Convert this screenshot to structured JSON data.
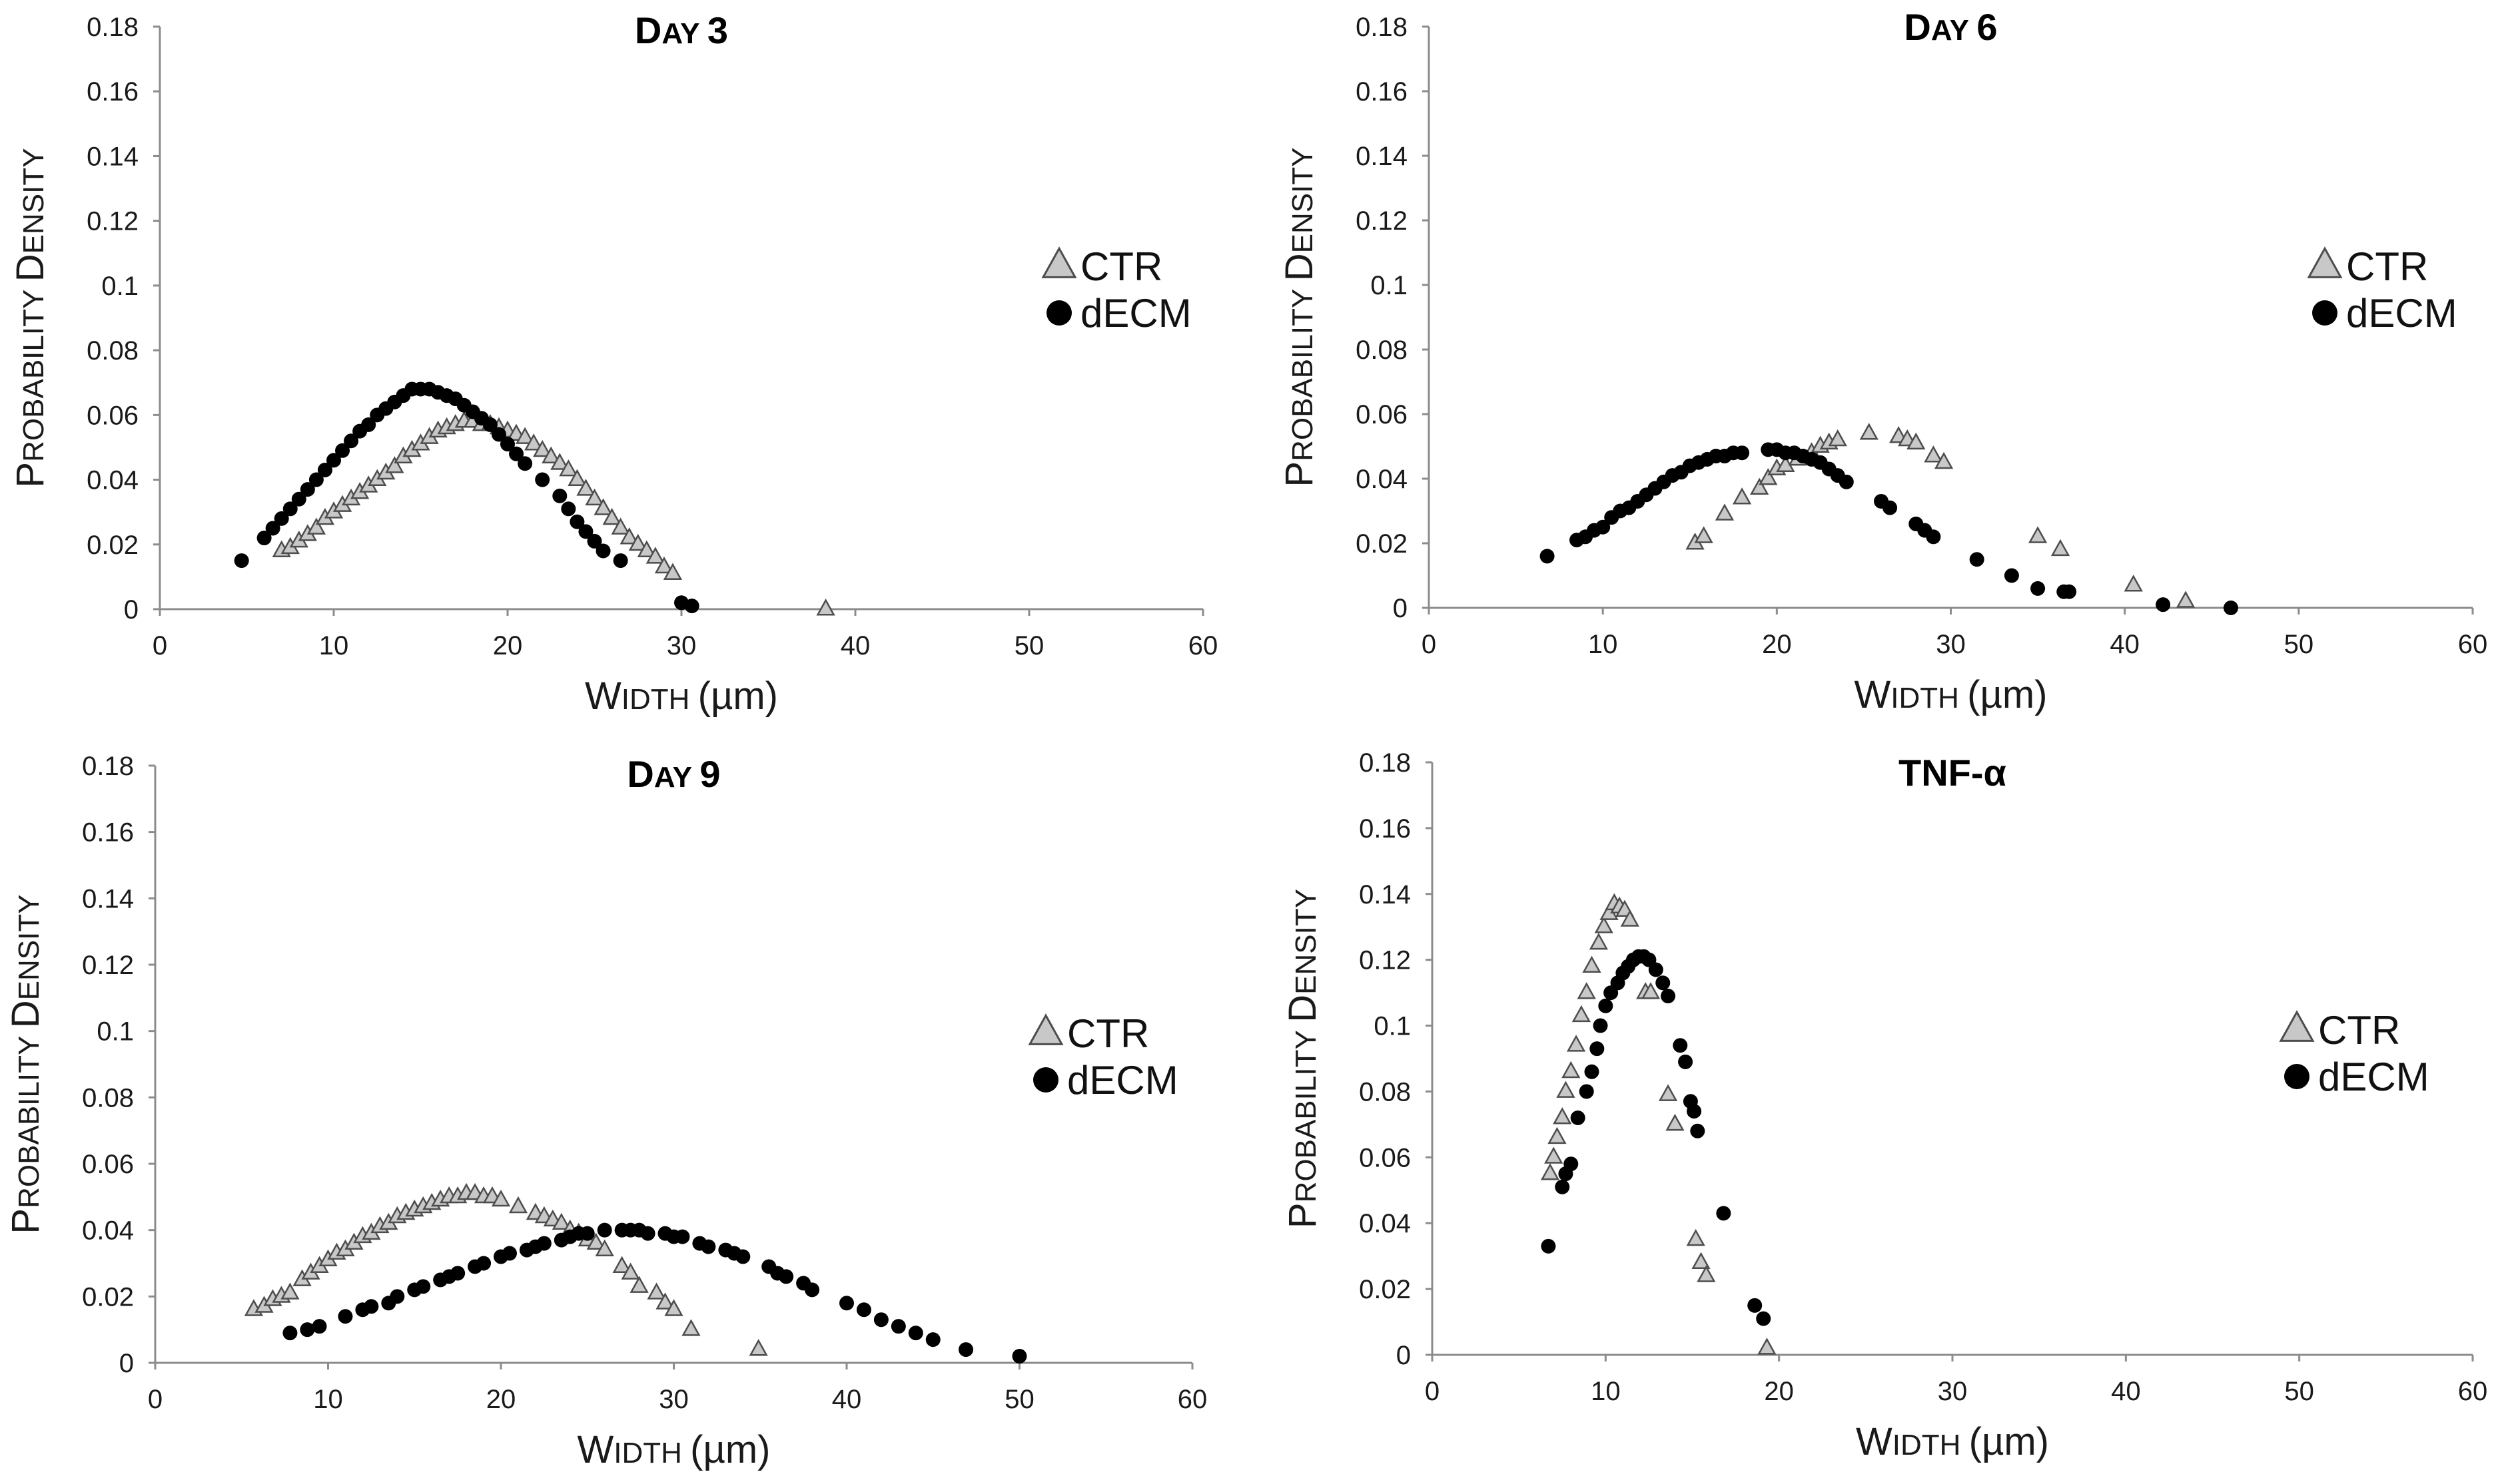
{
  "chart_data": [
    {
      "type": "scatter",
      "title": "Day 3",
      "xlabel": "Width (µm)",
      "ylabel": "Probability density",
      "xlim": [
        0,
        60
      ],
      "ylim": [
        0,
        0.18
      ],
      "xticks": [
        "0",
        "10",
        "20",
        "30",
        "40",
        "50",
        "60"
      ],
      "yticks": [
        "0",
        "0.02",
        "0.04",
        "0.06",
        "0.08",
        "0.1",
        "0.12",
        "0.14",
        "0.16",
        "0.18"
      ],
      "legend": [
        "CTR",
        "dECM"
      ],
      "series": [
        {
          "name": "CTR",
          "marker": "triangle",
          "color": "#c8c8c8",
          "x": [
            7.0,
            7.5,
            8.0,
            8.5,
            9.0,
            9.5,
            10.0,
            10.5,
            11.0,
            11.5,
            12.0,
            12.5,
            13.0,
            13.5,
            14.0,
            14.5,
            15.0,
            15.5,
            16.0,
            16.5,
            17.0,
            17.5,
            18.0,
            18.5,
            19.0,
            19.5,
            20.0,
            20.5,
            21.0,
            21.5,
            22.0,
            22.5,
            23.0,
            23.5,
            24.0,
            24.5,
            25.0,
            25.5,
            26.0,
            26.5,
            27.0,
            27.5,
            28.0,
            28.5,
            29.0,
            29.5,
            38.3
          ],
          "y": [
            0.018,
            0.019,
            0.021,
            0.023,
            0.025,
            0.028,
            0.03,
            0.032,
            0.034,
            0.036,
            0.038,
            0.04,
            0.042,
            0.044,
            0.047,
            0.049,
            0.051,
            0.053,
            0.055,
            0.056,
            0.057,
            0.058,
            0.058,
            0.057,
            0.057,
            0.056,
            0.055,
            0.054,
            0.053,
            0.051,
            0.049,
            0.047,
            0.045,
            0.043,
            0.04,
            0.037,
            0.034,
            0.031,
            0.028,
            0.025,
            0.022,
            0.02,
            0.018,
            0.016,
            0.013,
            0.011,
            0.0
          ]
        },
        {
          "name": "dECM",
          "marker": "circle",
          "color": "#000000",
          "x": [
            4.7,
            6.0,
            6.5,
            7.0,
            7.5,
            8.0,
            8.5,
            9.0,
            9.5,
            10.0,
            10.5,
            11.0,
            11.5,
            12.0,
            12.5,
            13.0,
            13.5,
            14.0,
            14.5,
            15.0,
            15.5,
            16.0,
            16.5,
            17.0,
            17.5,
            18.0,
            18.5,
            19.0,
            19.5,
            20.0,
            20.5,
            21.0,
            22.0,
            23.0,
            23.5,
            24.0,
            24.5,
            25.0,
            25.5,
            26.5,
            30.0,
            30.6
          ],
          "y": [
            0.015,
            0.022,
            0.025,
            0.028,
            0.031,
            0.034,
            0.037,
            0.04,
            0.043,
            0.046,
            0.049,
            0.052,
            0.055,
            0.057,
            0.06,
            0.062,
            0.064,
            0.066,
            0.068,
            0.068,
            0.068,
            0.067,
            0.066,
            0.065,
            0.063,
            0.061,
            0.059,
            0.057,
            0.054,
            0.051,
            0.048,
            0.045,
            0.04,
            0.035,
            0.031,
            0.027,
            0.024,
            0.021,
            0.018,
            0.015,
            0.002,
            0.001
          ]
        }
      ]
    },
    {
      "type": "scatter",
      "title": "Day 6",
      "xlabel": "Width (µm)",
      "ylabel": "Probability density",
      "xlim": [
        0,
        60
      ],
      "ylim": [
        0,
        0.18
      ],
      "xticks": [
        "0",
        "10",
        "20",
        "30",
        "40",
        "50",
        "60"
      ],
      "yticks": [
        "0",
        "0.02",
        "0.04",
        "0.06",
        "0.08",
        "0.1",
        "0.12",
        "0.14",
        "0.16",
        "0.18"
      ],
      "legend": [
        "CTR",
        "dECM"
      ],
      "series": [
        {
          "name": "CTR",
          "marker": "triangle",
          "color": "#c8c8c8",
          "x": [
            15.3,
            15.8,
            17.0,
            18.0,
            19.0,
            19.5,
            20.0,
            20.5,
            21.2,
            22.0,
            22.5,
            23.0,
            23.5,
            25.3,
            27.0,
            27.5,
            28.0,
            29.0,
            29.6,
            35.0,
            36.3,
            40.5,
            43.5
          ],
          "y": [
            0.02,
            0.022,
            0.029,
            0.034,
            0.037,
            0.04,
            0.043,
            0.044,
            0.046,
            0.048,
            0.05,
            0.051,
            0.052,
            0.054,
            0.053,
            0.052,
            0.051,
            0.047,
            0.045,
            0.022,
            0.018,
            0.007,
            0.002
          ]
        },
        {
          "name": "dECM",
          "marker": "circle",
          "color": "#000000",
          "x": [
            6.8,
            8.5,
            9.0,
            9.5,
            10.0,
            10.5,
            11.0,
            11.5,
            12.0,
            12.5,
            13.0,
            13.5,
            14.0,
            14.5,
            15.0,
            15.5,
            16.0,
            16.5,
            17.0,
            17.5,
            18.0,
            19.5,
            20.0,
            20.5,
            21.0,
            21.5,
            22.0,
            22.5,
            23.0,
            23.5,
            24.0,
            26.0,
            26.5,
            28.0,
            28.5,
            29.0,
            31.5,
            33.5,
            35.0,
            36.5,
            36.8,
            42.2,
            46.1
          ],
          "y": [
            0.016,
            0.021,
            0.022,
            0.024,
            0.025,
            0.028,
            0.03,
            0.031,
            0.033,
            0.035,
            0.037,
            0.039,
            0.041,
            0.042,
            0.044,
            0.045,
            0.046,
            0.047,
            0.047,
            0.048,
            0.048,
            0.049,
            0.049,
            0.048,
            0.048,
            0.047,
            0.046,
            0.045,
            0.043,
            0.041,
            0.039,
            0.033,
            0.031,
            0.026,
            0.024,
            0.022,
            0.015,
            0.01,
            0.006,
            0.005,
            0.005,
            0.001,
            0.0
          ]
        }
      ]
    },
    {
      "type": "scatter",
      "title": "Day 9",
      "xlabel": "Width (µm)",
      "ylabel": "Probability density",
      "xlim": [
        0,
        60
      ],
      "ylim": [
        0,
        0.18
      ],
      "xticks": [
        "0",
        "10",
        "20",
        "30",
        "40",
        "50",
        "60"
      ],
      "yticks": [
        "0",
        "0.02",
        "0.04",
        "0.06",
        "0.08",
        "0.1",
        "0.12",
        "0.14",
        "0.16",
        "0.18"
      ],
      "legend": [
        "CTR",
        "dECM"
      ],
      "series": [
        {
          "name": "CTR",
          "marker": "triangle",
          "color": "#c8c8c8",
          "x": [
            5.7,
            6.3,
            6.8,
            7.3,
            7.8,
            8.5,
            9.0,
            9.5,
            10.0,
            10.5,
            11.0,
            11.5,
            12.0,
            12.5,
            13.0,
            13.5,
            14.0,
            14.5,
            15.0,
            15.5,
            16.0,
            16.5,
            17.0,
            17.5,
            18.0,
            18.5,
            19.0,
            19.5,
            20.0,
            21.0,
            22.0,
            22.5,
            23.0,
            23.5,
            24.0,
            24.5,
            25.0,
            25.5,
            26.0,
            27.0,
            27.5,
            28.0,
            29.0,
            29.5,
            30.0,
            31.0,
            34.9
          ],
          "y": [
            0.016,
            0.017,
            0.019,
            0.02,
            0.021,
            0.025,
            0.027,
            0.029,
            0.031,
            0.033,
            0.034,
            0.036,
            0.038,
            0.039,
            0.041,
            0.042,
            0.044,
            0.045,
            0.046,
            0.047,
            0.048,
            0.049,
            0.05,
            0.05,
            0.051,
            0.051,
            0.05,
            0.05,
            0.049,
            0.047,
            0.045,
            0.044,
            0.043,
            0.042,
            0.04,
            0.039,
            0.037,
            0.036,
            0.034,
            0.029,
            0.027,
            0.023,
            0.021,
            0.018,
            0.016,
            0.01,
            0.004
          ]
        },
        {
          "name": "dECM",
          "marker": "circle",
          "color": "#000000",
          "x": [
            7.8,
            8.8,
            9.5,
            11.0,
            12.0,
            12.5,
            13.5,
            14.0,
            15.0,
            15.5,
            16.5,
            17.0,
            17.5,
            18.5,
            19.0,
            20.0,
            20.5,
            21.5,
            22.0,
            22.5,
            23.5,
            24.0,
            24.5,
            25.0,
            26.0,
            27.0,
            27.5,
            28.0,
            28.5,
            29.5,
            30.0,
            30.5,
            31.5,
            32.0,
            33.0,
            33.5,
            34.0,
            35.5,
            36.0,
            36.5,
            37.5,
            38.0,
            40.0,
            41.0,
            42.0,
            43.0,
            44.0,
            45.0,
            46.9,
            50.0
          ],
          "y": [
            0.009,
            0.01,
            0.011,
            0.014,
            0.016,
            0.017,
            0.018,
            0.02,
            0.022,
            0.023,
            0.025,
            0.026,
            0.027,
            0.029,
            0.03,
            0.032,
            0.033,
            0.034,
            0.035,
            0.036,
            0.037,
            0.038,
            0.039,
            0.039,
            0.04,
            0.04,
            0.04,
            0.04,
            0.039,
            0.039,
            0.038,
            0.038,
            0.036,
            0.035,
            0.034,
            0.033,
            0.032,
            0.029,
            0.027,
            0.026,
            0.024,
            0.022,
            0.018,
            0.016,
            0.013,
            0.011,
            0.009,
            0.007,
            0.004,
            0.002
          ]
        }
      ]
    },
    {
      "type": "scatter",
      "title": "TNF-α",
      "xlabel": "Width (µm)",
      "ylabel": "Probability density",
      "xlim": [
        0,
        60
      ],
      "ylim": [
        0,
        0.18
      ],
      "xticks": [
        "0",
        "10",
        "20",
        "30",
        "40",
        "50",
        "60"
      ],
      "yticks": [
        "0",
        "0.02",
        "0.04",
        "0.06",
        "0.08",
        "0.1",
        "0.12",
        "0.14",
        "0.16",
        "0.18"
      ],
      "legend": [
        "CTR",
        "dECM"
      ],
      "series": [
        {
          "name": "CTR",
          "marker": "triangle",
          "color": "#c8c8c8",
          "x": [
            6.8,
            7.0,
            7.2,
            7.5,
            7.7,
            8.0,
            8.3,
            8.6,
            8.9,
            9.2,
            9.6,
            9.9,
            10.2,
            10.5,
            10.8,
            11.1,
            11.4,
            12.3,
            12.6,
            13.6,
            14.0,
            15.2,
            15.5,
            15.8,
            19.3
          ],
          "y": [
            0.055,
            0.06,
            0.066,
            0.072,
            0.08,
            0.086,
            0.094,
            0.103,
            0.11,
            0.118,
            0.125,
            0.13,
            0.134,
            0.137,
            0.136,
            0.135,
            0.132,
            0.11,
            0.11,
            0.079,
            0.07,
            0.035,
            0.028,
            0.024,
            0.002
          ]
        },
        {
          "name": "dECM",
          "marker": "circle",
          "color": "#000000",
          "x": [
            6.7,
            7.5,
            7.7,
            8.0,
            8.4,
            8.9,
            9.2,
            9.5,
            9.7,
            10.0,
            10.3,
            10.7,
            11.0,
            11.3,
            11.6,
            11.9,
            12.2,
            12.5,
            12.9,
            13.3,
            13.6,
            14.3,
            14.6,
            14.9,
            15.1,
            15.3,
            16.8,
            18.6,
            19.1
          ],
          "y": [
            0.033,
            0.051,
            0.055,
            0.058,
            0.072,
            0.08,
            0.086,
            0.093,
            0.1,
            0.106,
            0.11,
            0.113,
            0.116,
            0.118,
            0.12,
            0.121,
            0.121,
            0.12,
            0.117,
            0.113,
            0.109,
            0.094,
            0.089,
            0.077,
            0.074,
            0.068,
            0.043,
            0.015,
            0.011
          ]
        }
      ]
    }
  ]
}
